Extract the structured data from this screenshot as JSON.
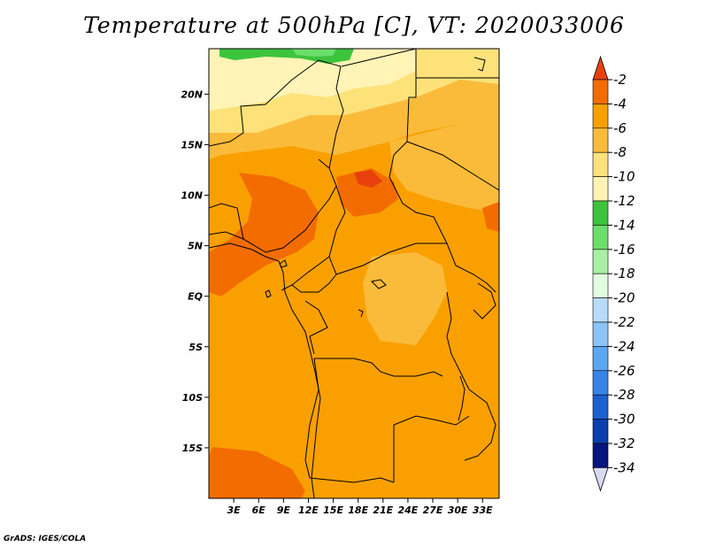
{
  "title": "Temperature at 500hPa [C], VT: 2020033006",
  "credit": "GrADS: IGES/COLA",
  "map": {
    "lon_ticks": [
      "3E",
      "6E",
      "9E",
      "12E",
      "15E",
      "18E",
      "21E",
      "24E",
      "27E",
      "30E",
      "33E"
    ],
    "lat_ticks": [
      "20N",
      "15N",
      "10N",
      "5N",
      "EQ",
      "5S",
      "10S",
      "15S"
    ],
    "lon_range": [
      0,
      35
    ],
    "lat_range": [
      -20,
      24.5
    ]
  },
  "colorbar": {
    "labels": [
      "-2",
      "-4",
      "-6",
      "-8",
      "-10",
      "-12",
      "-14",
      "-16",
      "-18",
      "-20",
      "-22",
      "-24",
      "-26",
      "-28",
      "-30",
      "-32",
      "-34"
    ],
    "colors": [
      "#e8400c",
      "#f36c00",
      "#f9a000",
      "#fbbb3a",
      "#fde27a",
      "#fff3b6",
      "#3dc43d",
      "#6cde6c",
      "#a9f0a5",
      "#e1fde1",
      "#b7dcfb",
      "#8cc4f7",
      "#5ca7f2",
      "#3783e9",
      "#1c61d2",
      "#0c3eb0",
      "#06157f",
      "#dad9f5"
    ]
  }
}
